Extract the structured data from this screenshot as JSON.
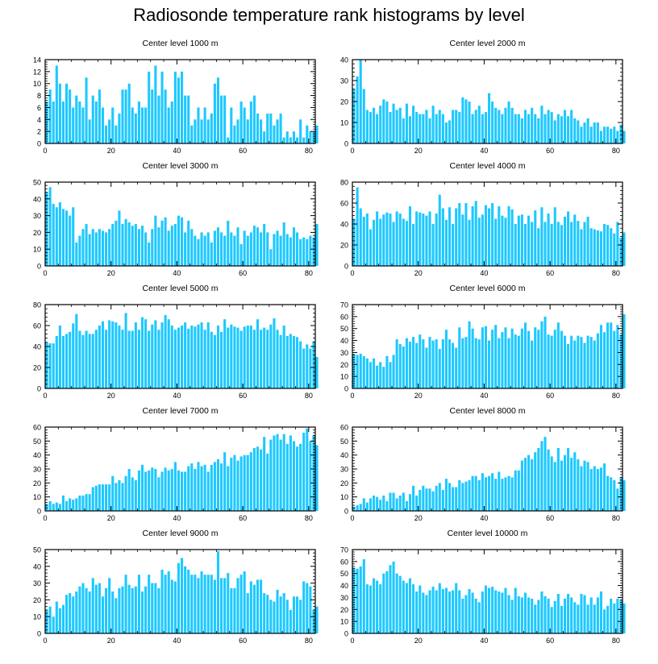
{
  "title": "Radiosonde temperature rank histograms by level",
  "colors": {
    "bar": "#1ec8ff",
    "axis": "#000000"
  },
  "chart_data": [
    {
      "type": "bar",
      "title": "Center level 1000 m",
      "xlim": [
        0,
        82
      ],
      "ylim": [
        0,
        14
      ],
      "xticks": [
        0,
        20,
        40,
        60,
        80
      ],
      "yticks": [
        0,
        2,
        4,
        6,
        8,
        10,
        12,
        14
      ],
      "x_start": 0,
      "values": [
        7,
        9,
        7,
        13,
        10,
        7,
        10,
        9,
        6,
        8,
        7,
        6,
        11,
        4,
        8,
        7,
        9,
        6,
        3,
        4,
        6,
        3,
        5,
        9,
        9,
        10,
        6,
        5,
        7,
        6,
        6,
        12,
        9,
        13,
        8,
        12,
        9,
        6,
        7,
        12,
        11,
        12,
        8,
        8,
        3,
        4,
        6,
        4,
        6,
        4,
        5,
        10,
        11,
        8,
        8,
        1,
        6,
        3,
        4,
        7,
        6,
        4,
        7,
        8,
        5,
        4,
        2,
        5,
        5,
        3,
        4,
        5,
        1,
        2,
        1,
        2,
        1,
        4,
        1,
        3,
        2,
        2,
        3
      ]
    },
    {
      "type": "bar",
      "title": "Center level 2000 m",
      "xlim": [
        0,
        82
      ],
      "ylim": [
        0,
        40
      ],
      "xticks": [
        0,
        20,
        40,
        60,
        80
      ],
      "yticks": [
        0,
        10,
        20,
        30,
        40
      ],
      "x_start": 0,
      "values": [
        26,
        32,
        40,
        26,
        16,
        15,
        17,
        14,
        18,
        21,
        20,
        15,
        19,
        16,
        17,
        12,
        19,
        13,
        18,
        15,
        14,
        14,
        16,
        12,
        18,
        14,
        16,
        14,
        10,
        11,
        16,
        16,
        15,
        22,
        21,
        20,
        14,
        16,
        18,
        14,
        15,
        24,
        20,
        17,
        16,
        14,
        17,
        20,
        17,
        14,
        14,
        12,
        16,
        14,
        17,
        14,
        12,
        18,
        14,
        16,
        15,
        11,
        14,
        13,
        16,
        13,
        16,
        12,
        11,
        8,
        10,
        12,
        8,
        10,
        10,
        6,
        8,
        8,
        7,
        8,
        6,
        9,
        6
      ]
    },
    {
      "type": "bar",
      "title": "Center level 3000 m",
      "xlim": [
        0,
        82
      ],
      "ylim": [
        0,
        50
      ],
      "xticks": [
        0,
        20,
        40,
        60,
        80
      ],
      "yticks": [
        0,
        10,
        20,
        30,
        40,
        50
      ],
      "x_start": 0,
      "values": [
        44,
        47,
        37,
        35,
        38,
        34,
        33,
        30,
        35,
        14,
        18,
        22,
        25,
        19,
        22,
        20,
        22,
        21,
        20,
        22,
        25,
        27,
        33,
        25,
        28,
        26,
        24,
        25,
        22,
        24,
        20,
        14,
        22,
        30,
        23,
        27,
        29,
        21,
        24,
        25,
        30,
        29,
        20,
        27,
        22,
        18,
        16,
        20,
        18,
        20,
        14,
        21,
        23,
        20,
        18,
        27,
        20,
        18,
        23,
        13,
        21,
        18,
        20,
        24,
        23,
        20,
        25,
        20,
        10,
        19,
        21,
        18,
        26,
        19,
        17,
        23,
        20,
        16,
        17,
        16,
        18,
        17,
        25
      ]
    },
    {
      "type": "bar",
      "title": "Center level 4000 m",
      "xlim": [
        0,
        82
      ],
      "ylim": [
        0,
        80
      ],
      "xticks": [
        0,
        20,
        40,
        60,
        80
      ],
      "yticks": [
        0,
        20,
        40,
        60,
        80
      ],
      "x_start": 0,
      "values": [
        45,
        75,
        55,
        47,
        50,
        35,
        44,
        52,
        45,
        49,
        51,
        50,
        42,
        52,
        50,
        45,
        43,
        57,
        40,
        52,
        51,
        50,
        48,
        52,
        40,
        50,
        68,
        55,
        44,
        56,
        40,
        55,
        60,
        49,
        60,
        44,
        57,
        62,
        46,
        49,
        58,
        55,
        60,
        45,
        57,
        48,
        46,
        57,
        54,
        40,
        48,
        49,
        40,
        48,
        42,
        53,
        36,
        56,
        42,
        50,
        40,
        56,
        42,
        39,
        47,
        52,
        42,
        49,
        43,
        35,
        42,
        47,
        36,
        35,
        34,
        33,
        40,
        39,
        36,
        31,
        42,
        27,
        32
      ]
    },
    {
      "type": "bar",
      "title": "Center level 5000 m",
      "xlim": [
        0,
        82
      ],
      "ylim": [
        0,
        80
      ],
      "xticks": [
        0,
        20,
        40,
        60,
        80
      ],
      "yticks": [
        0,
        20,
        40,
        60,
        80
      ],
      "x_start": 0,
      "values": [
        44,
        43,
        43,
        50,
        60,
        50,
        52,
        54,
        62,
        71,
        55,
        51,
        55,
        52,
        52,
        56,
        60,
        64,
        56,
        65,
        64,
        63,
        60,
        56,
        72,
        55,
        55,
        63,
        56,
        68,
        66,
        55,
        61,
        65,
        56,
        63,
        70,
        66,
        60,
        56,
        58,
        60,
        63,
        57,
        60,
        59,
        61,
        63,
        56,
        63,
        54,
        51,
        60,
        54,
        66,
        58,
        61,
        59,
        58,
        55,
        59,
        60,
        60,
        56,
        66,
        56,
        58,
        56,
        61,
        67,
        56,
        51,
        60,
        50,
        52,
        50,
        49,
        45,
        38,
        42,
        38,
        45,
        30
      ]
    },
    {
      "type": "bar",
      "title": "Center level 6000 m",
      "xlim": [
        0,
        82
      ],
      "ylim": [
        0,
        70
      ],
      "xticks": [
        0,
        20,
        40,
        60,
        80
      ],
      "yticks": [
        0,
        10,
        20,
        30,
        40,
        50,
        60,
        70
      ],
      "x_start": 0,
      "values": [
        29,
        28,
        29,
        27,
        25,
        22,
        25,
        19,
        22,
        18,
        27,
        22,
        28,
        41,
        37,
        35,
        42,
        39,
        43,
        38,
        45,
        41,
        34,
        43,
        40,
        41,
        33,
        41,
        49,
        41,
        38,
        34,
        51,
        42,
        43,
        56,
        50,
        42,
        41,
        51,
        52,
        40,
        49,
        53,
        42,
        47,
        51,
        42,
        50,
        45,
        44,
        50,
        55,
        48,
        40,
        51,
        49,
        56,
        60,
        45,
        44,
        49,
        55,
        48,
        44,
        37,
        44,
        40,
        44,
        43,
        38,
        44,
        43,
        40,
        46,
        53,
        47,
        55,
        55,
        48,
        53,
        45,
        62
      ]
    },
    {
      "type": "bar",
      "title": "Center level 7000 m",
      "xlim": [
        0,
        82
      ],
      "ylim": [
        0,
        60
      ],
      "xticks": [
        0,
        20,
        40,
        60,
        80
      ],
      "yticks": [
        0,
        10,
        20,
        30,
        40,
        50,
        60
      ],
      "x_start": 0,
      "values": [
        5,
        7,
        5,
        6,
        5,
        11,
        7,
        9,
        8,
        9,
        11,
        11,
        12,
        12,
        17,
        18,
        19,
        19,
        19,
        19,
        25,
        20,
        22,
        20,
        25,
        30,
        24,
        22,
        29,
        33,
        28,
        29,
        31,
        30,
        24,
        28,
        31,
        29,
        30,
        35,
        29,
        28,
        28,
        32,
        34,
        30,
        35,
        32,
        33,
        28,
        33,
        35,
        37,
        34,
        42,
        32,
        38,
        40,
        36,
        39,
        40,
        40,
        42,
        45,
        46,
        44,
        53,
        41,
        51,
        54,
        55,
        51,
        55,
        48,
        54,
        50,
        46,
        48,
        56,
        59,
        50,
        54,
        47
      ]
    },
    {
      "type": "bar",
      "title": "Center level 8000 m",
      "xlim": [
        0,
        82
      ],
      "ylim": [
        0,
        60
      ],
      "xticks": [
        0,
        20,
        40,
        60,
        80
      ],
      "yticks": [
        0,
        10,
        20,
        30,
        40,
        50,
        60
      ],
      "x_start": 0,
      "values": [
        3,
        4,
        5,
        9,
        6,
        9,
        11,
        10,
        8,
        11,
        7,
        13,
        13,
        9,
        11,
        13,
        7,
        12,
        18,
        11,
        15,
        18,
        16,
        16,
        14,
        18,
        20,
        15,
        23,
        20,
        17,
        17,
        22,
        20,
        21,
        22,
        25,
        25,
        22,
        27,
        24,
        25,
        27,
        23,
        28,
        23,
        24,
        25,
        24,
        29,
        29,
        36,
        38,
        40,
        37,
        42,
        45,
        50,
        53,
        44,
        39,
        35,
        45,
        36,
        40,
        45,
        38,
        42,
        37,
        32,
        36,
        35,
        30,
        32,
        30,
        31,
        34,
        25,
        24,
        22,
        16,
        24,
        22
      ]
    },
    {
      "type": "bar",
      "title": "Center level 9000 m",
      "xlim": [
        0,
        82
      ],
      "ylim": [
        0,
        50
      ],
      "xticks": [
        0,
        20,
        40,
        60,
        80
      ],
      "yticks": [
        0,
        10,
        20,
        30,
        40,
        50
      ],
      "x_start": 0,
      "values": [
        14,
        16,
        10,
        19,
        15,
        17,
        23,
        24,
        22,
        25,
        28,
        30,
        27,
        25,
        33,
        29,
        30,
        22,
        27,
        33,
        25,
        21,
        27,
        28,
        35,
        29,
        27,
        28,
        35,
        25,
        28,
        35,
        30,
        30,
        27,
        38,
        35,
        37,
        32,
        31,
        42,
        45,
        40,
        38,
        35,
        35,
        33,
        37,
        35,
        35,
        35,
        32,
        49,
        33,
        33,
        36,
        27,
        27,
        33,
        35,
        37,
        24,
        31,
        29,
        32,
        32,
        24,
        23,
        20,
        19,
        26,
        22,
        24,
        20,
        14,
        22,
        22,
        20,
        31,
        30,
        28,
        14,
        16
      ]
    },
    {
      "type": "bar",
      "title": "Center level 10000 m",
      "xlim": [
        0,
        82
      ],
      "ylim": [
        0,
        70
      ],
      "xticks": [
        0,
        20,
        40,
        60,
        80
      ],
      "yticks": [
        0,
        10,
        20,
        30,
        40,
        50,
        60,
        70
      ],
      "x_start": 0,
      "values": [
        55,
        54,
        56,
        62,
        41,
        40,
        46,
        44,
        41,
        50,
        52,
        57,
        60,
        50,
        48,
        44,
        42,
        46,
        41,
        35,
        40,
        34,
        32,
        36,
        39,
        36,
        42,
        37,
        38,
        35,
        36,
        42,
        36,
        29,
        32,
        37,
        34,
        29,
        26,
        35,
        40,
        38,
        39,
        36,
        35,
        34,
        38,
        32,
        28,
        38,
        31,
        30,
        34,
        30,
        29,
        24,
        28,
        35,
        31,
        29,
        22,
        27,
        33,
        23,
        29,
        33,
        30,
        26,
        24,
        33,
        32,
        24,
        30,
        24,
        30,
        35,
        20,
        23,
        29,
        25,
        29,
        28,
        25
      ]
    }
  ]
}
